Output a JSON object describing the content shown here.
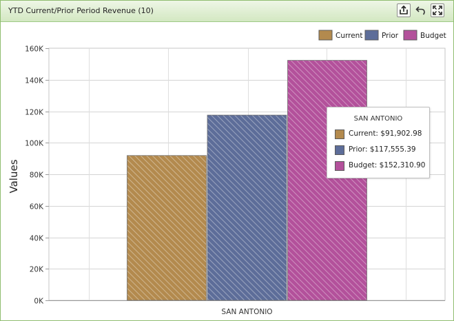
{
  "panel": {
    "title": "YTD Current/Prior Period Revenue (10)"
  },
  "toolbar": {
    "export_icon": "export-icon",
    "undo_icon": "undo-icon",
    "fullscreen_icon": "fullscreen-icon"
  },
  "chart_data": {
    "type": "bar",
    "categories": [
      "SAN ANTONIO"
    ],
    "series": [
      {
        "name": "Current",
        "values": [
          91902.98
        ],
        "color": "#b38a4e"
      },
      {
        "name": "Prior",
        "values": [
          117555.39
        ],
        "color": "#5d6d99"
      },
      {
        "name": "Budget",
        "values": [
          152310.9
        ],
        "color": "#b3519b"
      }
    ],
    "ylabel": "Values",
    "ylim": [
      0,
      160000
    ],
    "yticks": [
      "0K",
      "20K",
      "40K",
      "60K",
      "80K",
      "100K",
      "120K",
      "140K",
      "160K"
    ],
    "grid": true,
    "legend": "top-right",
    "fill_pattern": "diagonal-hatch"
  },
  "tooltip": {
    "title": "SAN ANTONIO",
    "rows": [
      {
        "text": "Current: $91,902.98",
        "color": "#b38a4e"
      },
      {
        "text": "Prior: $117,555.39",
        "color": "#5d6d99"
      },
      {
        "text": "Budget: $152,310.90",
        "color": "#b3519b"
      }
    ]
  }
}
